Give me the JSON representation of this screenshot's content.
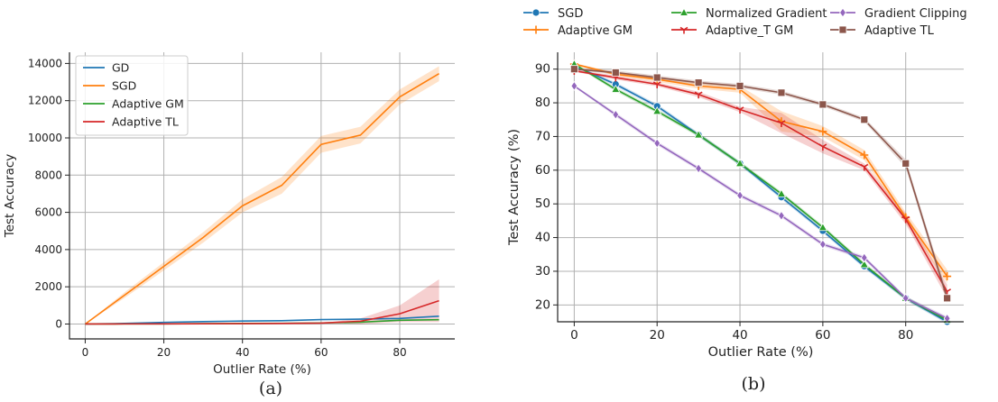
{
  "chart_data": [
    {
      "type": "line",
      "caption": "(a)",
      "xlabel": "Outlier Rate (%)",
      "ylabel": "Test Accuracy",
      "xlim": [
        -4,
        94
      ],
      "ylim": [
        -800,
        14600
      ],
      "xticks": [
        0,
        20,
        40,
        60,
        80
      ],
      "yticks": [
        0,
        2000,
        4000,
        6000,
        8000,
        10000,
        12000,
        14000
      ],
      "grid": true,
      "legend_position": "top-left",
      "x": [
        0,
        10,
        20,
        30,
        40,
        50,
        60,
        70,
        80,
        90
      ],
      "series": [
        {
          "name": "GD",
          "color": "#1f77b4",
          "values": [
            0,
            30,
            90,
            130,
            160,
            180,
            240,
            260,
            300,
            420
          ],
          "band": [
            0,
            0,
            0,
            0,
            0,
            0,
            0,
            0,
            0,
            0
          ]
        },
        {
          "name": "SGD",
          "color": "#ff7f0e",
          "values": [
            0,
            1550,
            3100,
            4650,
            6350,
            7450,
            9650,
            10150,
            12200,
            13450
          ],
          "band": [
            0,
            150,
            220,
            280,
            350,
            450,
            450,
            450,
            400,
            400
          ]
        },
        {
          "name": "Adaptive GM",
          "color": "#2ca02c",
          "values": [
            0,
            5,
            10,
            20,
            30,
            40,
            60,
            100,
            200,
            230
          ],
          "band": [
            0,
            0,
            0,
            0,
            0,
            0,
            0,
            0,
            0,
            0
          ]
        },
        {
          "name": "Adaptive TL",
          "color": "#d62728",
          "values": [
            0,
            5,
            10,
            15,
            20,
            30,
            50,
            150,
            550,
            1250
          ],
          "band": [
            0,
            0,
            0,
            0,
            0,
            0,
            0,
            150,
            450,
            1150
          ]
        }
      ]
    },
    {
      "type": "line",
      "caption": "(b)",
      "xlabel": "Outlier Rate (%)",
      "ylabel": "Test Accuracy (%)",
      "xlim": [
        -4,
        94
      ],
      "ylim": [
        15,
        95
      ],
      "xticks": [
        0,
        20,
        40,
        60,
        80
      ],
      "yticks": [
        20,
        30,
        40,
        50,
        60,
        70,
        80,
        90
      ],
      "grid": true,
      "legend_position": "top, outside",
      "x": [
        0,
        10,
        20,
        30,
        40,
        50,
        60,
        70,
        80,
        90
      ],
      "series": [
        {
          "name": "SGD",
          "color": "#1f77b4",
          "marker": "circle",
          "values": [
            91,
            85.5,
            79,
            70.5,
            62,
            52,
            42,
            31.5,
            22,
            15
          ],
          "band": [
            0.3,
            0.6,
            0.6,
            0.6,
            0.6,
            0.6,
            0.6,
            0.6,
            0.6,
            0.6
          ]
        },
        {
          "name": "Adaptive GM",
          "color": "#ff7f0e",
          "marker": "plus",
          "values": [
            91.5,
            88.5,
            87,
            85,
            84,
            74.5,
            71.5,
            64.5,
            46,
            28.5
          ],
          "band": [
            0.3,
            0.5,
            0.8,
            0.8,
            1.0,
            3.0,
            1.6,
            1.5,
            1.5,
            2.0
          ]
        },
        {
          "name": "Normalized Gradient",
          "color": "#2ca02c",
          "marker": "triangle",
          "values": [
            91.5,
            84,
            77.5,
            70.5,
            62,
            53,
            43,
            32,
            22,
            15.5
          ],
          "band": [
            0.3,
            0.6,
            0.6,
            0.6,
            0.6,
            0.6,
            0.6,
            0.6,
            0.6,
            0.6
          ]
        },
        {
          "name": "Adaptive_T GM",
          "color": "#d62728",
          "marker": "tri_down",
          "values": [
            89.5,
            87.5,
            85.5,
            82.5,
            78,
            74,
            67,
            61,
            45.5,
            24
          ],
          "band": [
            0.3,
            0.6,
            0.6,
            0.8,
            0.8,
            3.0,
            2.0,
            1.0,
            1.5,
            2.0
          ]
        },
        {
          "name": "Gradient Clipping",
          "color": "#9467bd",
          "marker": "diamond",
          "values": [
            85,
            76.5,
            68,
            60.5,
            52.5,
            46.5,
            38,
            34,
            22,
            16
          ],
          "band": [
            0.3,
            0.6,
            0.6,
            0.6,
            0.6,
            0.6,
            0.6,
            0.6,
            0.6,
            0.6
          ]
        },
        {
          "name": "Adaptive TL",
          "color": "#8c564b",
          "marker": "square",
          "values": [
            90,
            89,
            87.5,
            86,
            85,
            83,
            79.5,
            75,
            62,
            22
          ],
          "band": [
            0.3,
            0.6,
            0.6,
            0.6,
            0.6,
            0.6,
            0.6,
            0.6,
            1.2,
            1.5
          ]
        }
      ]
    }
  ]
}
